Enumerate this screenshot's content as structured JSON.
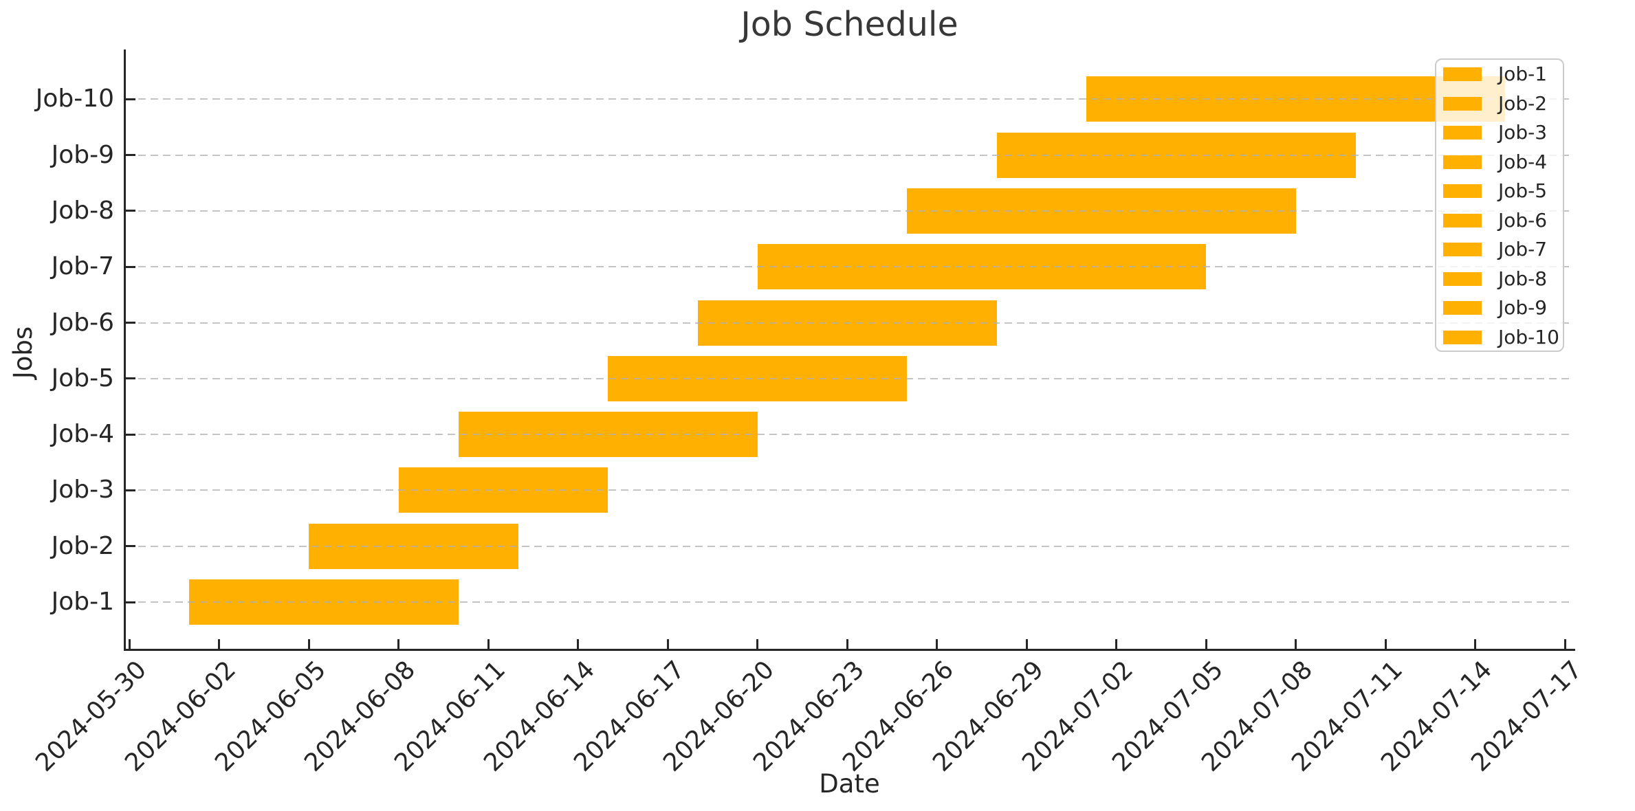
{
  "chart_data": {
    "type": "bar",
    "subtype": "gantt-horizontal",
    "title": "Job Schedule",
    "xlabel": "Date",
    "ylabel": "Jobs",
    "bar_color": "#FFB000",
    "text_color": "#262626",
    "title_color": "#383838",
    "grid": {
      "visible": true,
      "style": "dashed",
      "color": "#C6C6C6",
      "axis": "y"
    },
    "x_range": [
      "2024-05-30",
      "2024-07-17"
    ],
    "x_tick_interval_days": 3,
    "x_tick_labels": [
      "2024-05-30",
      "2024-06-02",
      "2024-06-05",
      "2024-06-08",
      "2024-06-11",
      "2024-06-14",
      "2024-06-17",
      "2024-06-20",
      "2024-06-23",
      "2024-06-26",
      "2024-06-29",
      "2024-07-02",
      "2024-07-05",
      "2024-07-08",
      "2024-07-11",
      "2024-07-14",
      "2024-07-17"
    ],
    "y_tick_labels": [
      "Job-1",
      "Job-2",
      "Job-3",
      "Job-4",
      "Job-5",
      "Job-6",
      "Job-7",
      "Job-8",
      "Job-9",
      "Job-10"
    ],
    "jobs": [
      {
        "label": "Job-1",
        "start": "2024-06-01",
        "end": "2024-06-10"
      },
      {
        "label": "Job-2",
        "start": "2024-06-05",
        "end": "2024-06-12"
      },
      {
        "label": "Job-3",
        "start": "2024-06-08",
        "end": "2024-06-15"
      },
      {
        "label": "Job-4",
        "start": "2024-06-10",
        "end": "2024-06-20"
      },
      {
        "label": "Job-5",
        "start": "2024-06-15",
        "end": "2024-06-25"
      },
      {
        "label": "Job-6",
        "start": "2024-06-18",
        "end": "2024-06-28"
      },
      {
        "label": "Job-7",
        "start": "2024-06-20",
        "end": "2024-07-05"
      },
      {
        "label": "Job-8",
        "start": "2024-06-25",
        "end": "2024-07-08"
      },
      {
        "label": "Job-9",
        "start": "2024-06-28",
        "end": "2024-07-10"
      },
      {
        "label": "Job-10",
        "start": "2024-07-01",
        "end": "2024-07-15"
      }
    ],
    "legend": {
      "position": "upper-right",
      "labels": [
        "Job-1",
        "Job-2",
        "Job-3",
        "Job-4",
        "Job-5",
        "Job-6",
        "Job-7",
        "Job-8",
        "Job-9",
        "Job-10"
      ]
    }
  }
}
